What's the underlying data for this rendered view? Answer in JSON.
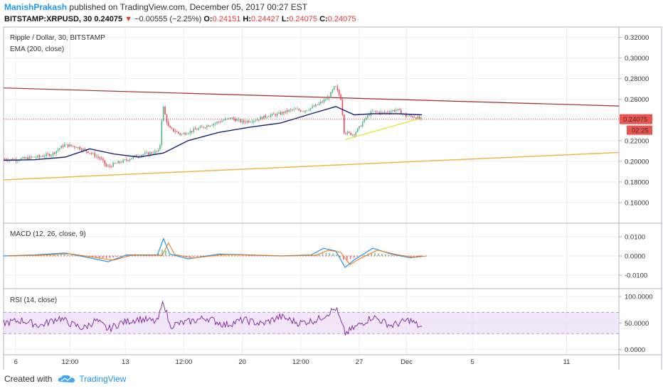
{
  "header": {
    "author": "ManishPrakash",
    "published": "published on TradingView.com, December 05, 2017 00:27 EST",
    "symbol": "BITSTAMP:XRPUSD, 30",
    "last": "0.24075",
    "change_arrow": "▼",
    "change": "−0.00555 (−2.25%)",
    "o_label": "O:",
    "o": "0.24151",
    "h_label": "H:",
    "h": "0.24427",
    "l_label": "L:",
    "l": "0.24075",
    "c_label": "C:",
    "c": "0.24075"
  },
  "colors": {
    "up": "#53b987",
    "down": "#eb4d5c",
    "ema": "#1a237e",
    "resistance": "#a52a2a",
    "support": "#f0b64a",
    "support_short": "#e6e64a",
    "macd": "#2196f3",
    "signal": "#ff6d00",
    "rsi": "#7b1fa2",
    "rsi_band": "#ead7f5",
    "last_label": "#ef5350",
    "grid": "#eceff2"
  },
  "footer": {
    "created_with": "Created with",
    "brand": "TradingView",
    "logo_icon": "tradingview-cloud-icon"
  },
  "chart_data": [
    {
      "type": "candlestick",
      "title": "Ripple / Dollar, 30, BITSTAMP",
      "indicator": "EMA (200, close)",
      "ylim": [
        0.14,
        0.33
      ],
      "y_ticks": [
        "0.32000",
        "0.30000",
        "0.28000",
        "0.26000",
        "0.24000",
        "0.22000",
        "0.20000",
        "0.18000",
        "0.16000"
      ],
      "last_price_label": "0.24075",
      "countdown_label": "02:25",
      "x_ticks": [
        "6",
        "12:00",
        "13",
        "12:00",
        "20",
        "12:00",
        "27",
        "Dec",
        "5",
        "11"
      ],
      "price_path": [
        [
          0,
          0.202
        ],
        [
          0.02,
          0.2015
        ],
        [
          0.04,
          0.203
        ],
        [
          0.06,
          0.2045
        ],
        [
          0.08,
          0.207
        ],
        [
          0.1,
          0.216
        ],
        [
          0.12,
          0.214
        ],
        [
          0.14,
          0.209
        ],
        [
          0.16,
          0.202
        ],
        [
          0.17,
          0.194
        ],
        [
          0.18,
          0.197
        ],
        [
          0.2,
          0.201
        ],
        [
          0.22,
          0.206
        ],
        [
          0.24,
          0.208
        ],
        [
          0.255,
          0.21
        ],
        [
          0.26,
          0.255
        ],
        [
          0.265,
          0.242
        ],
        [
          0.27,
          0.232
        ],
        [
          0.29,
          0.226
        ],
        [
          0.31,
          0.23
        ],
        [
          0.33,
          0.234
        ],
        [
          0.35,
          0.238
        ],
        [
          0.37,
          0.242
        ],
        [
          0.39,
          0.238
        ],
        [
          0.41,
          0.24
        ],
        [
          0.43,
          0.244
        ],
        [
          0.45,
          0.246
        ],
        [
          0.47,
          0.25
        ],
        [
          0.49,
          0.249
        ],
        [
          0.51,
          0.254
        ],
        [
          0.53,
          0.262
        ],
        [
          0.54,
          0.273
        ],
        [
          0.55,
          0.26
        ],
        [
          0.555,
          0.228
        ],
        [
          0.57,
          0.226
        ],
        [
          0.58,
          0.233
        ],
        [
          0.59,
          0.242
        ],
        [
          0.6,
          0.248
        ],
        [
          0.62,
          0.247
        ],
        [
          0.64,
          0.25
        ],
        [
          0.655,
          0.244
        ],
        [
          0.67,
          0.243
        ],
        [
          0.68,
          0.2408
        ]
      ],
      "ema_path": [
        [
          0,
          0.201
        ],
        [
          0.05,
          0.2015
        ],
        [
          0.1,
          0.204
        ],
        [
          0.14,
          0.212
        ],
        [
          0.18,
          0.207
        ],
        [
          0.22,
          0.204
        ],
        [
          0.26,
          0.208
        ],
        [
          0.3,
          0.22
        ],
        [
          0.35,
          0.228
        ],
        [
          0.4,
          0.233
        ],
        [
          0.45,
          0.237
        ],
        [
          0.5,
          0.246
        ],
        [
          0.54,
          0.253
        ],
        [
          0.57,
          0.245
        ],
        [
          0.6,
          0.246
        ],
        [
          0.64,
          0.246
        ],
        [
          0.68,
          0.245
        ]
      ],
      "resistance_line": [
        [
          0.0,
          0.271
        ],
        [
          1.0,
          0.2535
        ]
      ],
      "support_line": [
        [
          0.0,
          0.182
        ],
        [
          1.0,
          0.2085
        ]
      ],
      "support_short_line": [
        [
          0.555,
          0.221
        ],
        [
          0.68,
          0.242
        ]
      ]
    },
    {
      "type": "line",
      "title": "MACD (12, 26, close, 9)",
      "ylim": [
        -0.017,
        0.017
      ],
      "y_ticks": [
        "0.0100",
        "0.0000",
        "-0.0100"
      ],
      "macd_path": [
        [
          0,
          0.0
        ],
        [
          0.05,
          0.0005
        ],
        [
          0.1,
          0.0015
        ],
        [
          0.14,
          -0.001
        ],
        [
          0.17,
          -0.003
        ],
        [
          0.2,
          0.0005
        ],
        [
          0.25,
          0.0005
        ],
        [
          0.26,
          0.009
        ],
        [
          0.27,
          0.001
        ],
        [
          0.3,
          -0.0015
        ],
        [
          0.35,
          0.001
        ],
        [
          0.4,
          0.0005
        ],
        [
          0.45,
          0.0
        ],
        [
          0.5,
          0.0005
        ],
        [
          0.52,
          0.004
        ],
        [
          0.54,
          0.0025
        ],
        [
          0.555,
          -0.006
        ],
        [
          0.57,
          -0.002
        ],
        [
          0.6,
          0.004
        ],
        [
          0.63,
          0.001
        ],
        [
          0.66,
          -0.001
        ],
        [
          0.68,
          0.0
        ]
      ]
    },
    {
      "type": "line",
      "title": "RSI (14, close)",
      "ylim": [
        -10,
        115
      ],
      "y_ticks": [
        "100.0000",
        "50.0000",
        "0.0000"
      ],
      "band": [
        30,
        70
      ],
      "rsi_path": [
        [
          0,
          50
        ],
        [
          0.03,
          55
        ],
        [
          0.06,
          45
        ],
        [
          0.09,
          60
        ],
        [
          0.11,
          48
        ],
        [
          0.13,
          40
        ],
        [
          0.15,
          55
        ],
        [
          0.17,
          38
        ],
        [
          0.19,
          50
        ],
        [
          0.22,
          58
        ],
        [
          0.25,
          52
        ],
        [
          0.26,
          92
        ],
        [
          0.27,
          45
        ],
        [
          0.3,
          52
        ],
        [
          0.33,
          60
        ],
        [
          0.36,
          46
        ],
        [
          0.39,
          56
        ],
        [
          0.42,
          48
        ],
        [
          0.45,
          62
        ],
        [
          0.48,
          50
        ],
        [
          0.51,
          56
        ],
        [
          0.54,
          78
        ],
        [
          0.555,
          30
        ],
        [
          0.58,
          48
        ],
        [
          0.6,
          62
        ],
        [
          0.63,
          45
        ],
        [
          0.66,
          56
        ],
        [
          0.68,
          40
        ]
      ]
    }
  ]
}
